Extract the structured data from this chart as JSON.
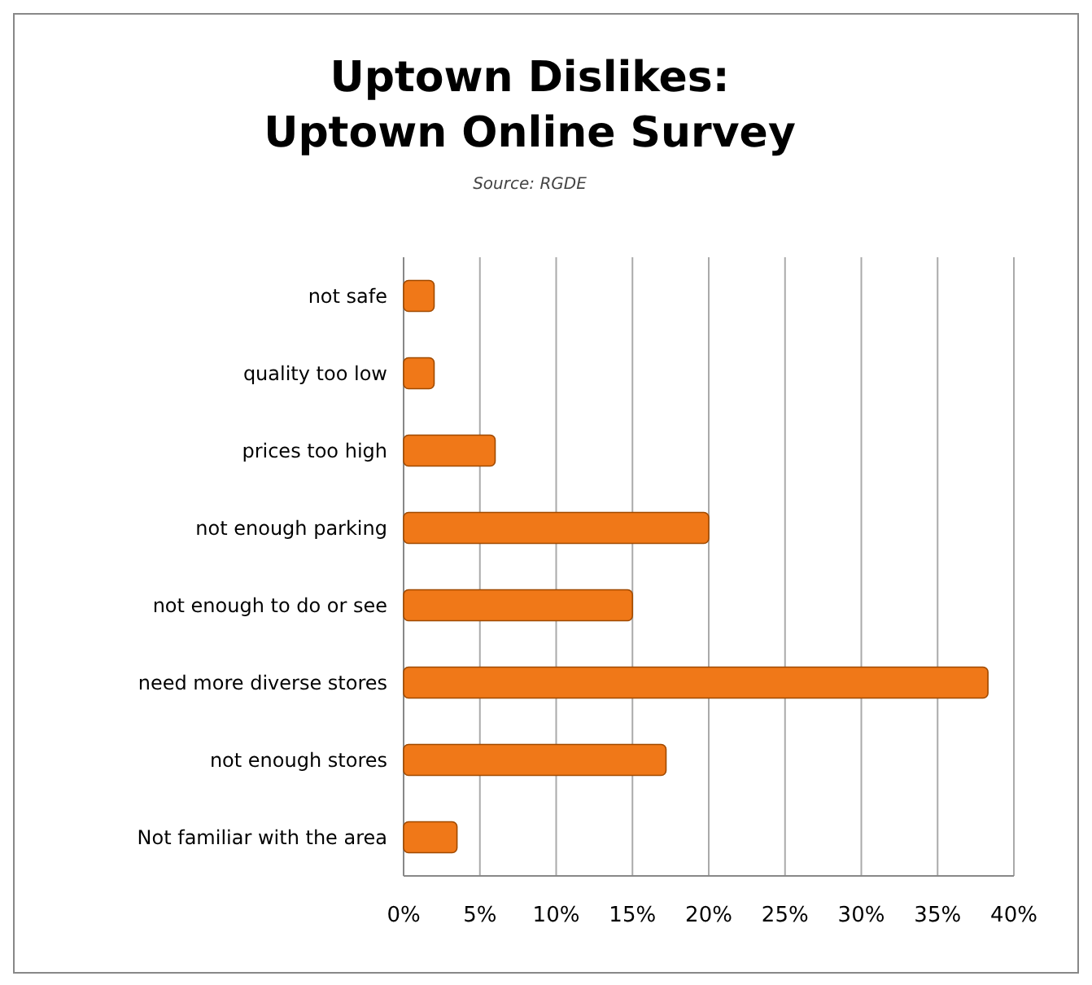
{
  "chart_data": {
    "type": "bar",
    "orientation": "horizontal",
    "title": "Uptown Dislikes:\nUptown Online Survey",
    "annotations": [
      "Source: RGDE"
    ],
    "categories": [
      "not safe",
      "quality too low",
      "prices too high",
      "not enough parking",
      "not enough to do or see",
      "need more diverse stores",
      "not enough stores",
      "Not familiar with the area"
    ],
    "values": [
      2,
      2,
      6,
      20,
      15,
      38.3,
      17.2,
      3.5
    ],
    "color": "#f07818",
    "xlim": [
      0,
      40
    ],
    "xticks": [
      {
        "value": 0,
        "label": "0%"
      },
      {
        "value": 5,
        "label": "5%"
      },
      {
        "value": 10,
        "label": "10%"
      },
      {
        "value": 15,
        "label": "15%"
      },
      {
        "value": 20,
        "label": "20%"
      },
      {
        "value": 25,
        "label": "25%"
      },
      {
        "value": 30,
        "label": "30%"
      },
      {
        "value": 35,
        "label": "35%"
      },
      {
        "value": 40,
        "label": "40%"
      }
    ],
    "grid": "x"
  }
}
